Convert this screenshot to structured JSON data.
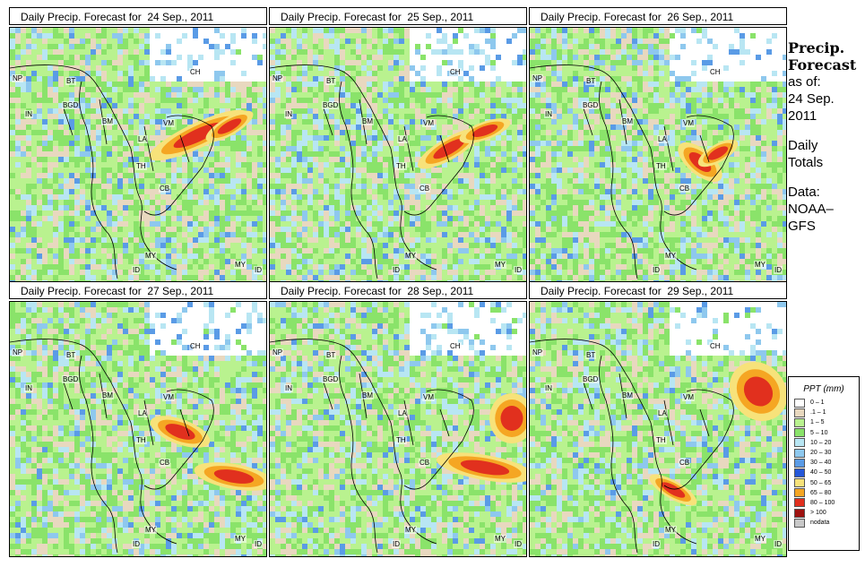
{
  "sidebar": {
    "title_line1": "Precip.",
    "title_line2": "Forecast",
    "asof_label": "as of:",
    "date_line1": "24 Sep.",
    "date_line2": "2011",
    "daily_line1": "Daily",
    "daily_line2": "Totals",
    "data_line1": "Data:",
    "data_line2": "NOAA–",
    "data_line3": "GFS"
  },
  "panels": [
    {
      "title": "Daily Precip. Forecast for  24 Sep., 2011"
    },
    {
      "title": "Daily Precip. Forecast for  25 Sep., 2011"
    },
    {
      "title": "Daily Precip. Forecast for  26 Sep., 2011"
    },
    {
      "title": "Daily Precip. Forecast for  27 Sep., 2011"
    },
    {
      "title": "Daily Precip. Forecast for  28 Sep., 2011"
    },
    {
      "title": "Daily Precip. Forecast for  29 Sep., 2011"
    }
  ],
  "country_labels": [
    "CH",
    "NP",
    "BT",
    "BGD",
    "IN",
    "BM",
    "VM",
    "LA",
    "TH",
    "CB",
    "MY",
    "ID",
    "MY",
    "ID"
  ],
  "legend": {
    "title": "PPT (mm)",
    "items": [
      {
        "label": "0 – 1",
        "color": "#ffffff"
      },
      {
        "label": ".1 – 1",
        "color": "#e8d8bf"
      },
      {
        "label": "1 – 5",
        "color": "#b9f28f"
      },
      {
        "label": "5 – 10",
        "color": "#8ae36a"
      },
      {
        "label": "10 – 20",
        "color": "#b8e6f3"
      },
      {
        "label": "20 – 30",
        "color": "#8ec8ee"
      },
      {
        "label": "30 – 40",
        "color": "#5a9be6"
      },
      {
        "label": "40 – 50",
        "color": "#2457d9"
      },
      {
        "label": "50 – 65",
        "color": "#f7e27a"
      },
      {
        "label": "65 – 80",
        "color": "#f5a623"
      },
      {
        "label": "80 – 100",
        "color": "#e1301e"
      },
      {
        "label": "> 100",
        "color": "#9e1210"
      },
      {
        "label": "nodata",
        "color": "#c8c8c8"
      }
    ]
  }
}
